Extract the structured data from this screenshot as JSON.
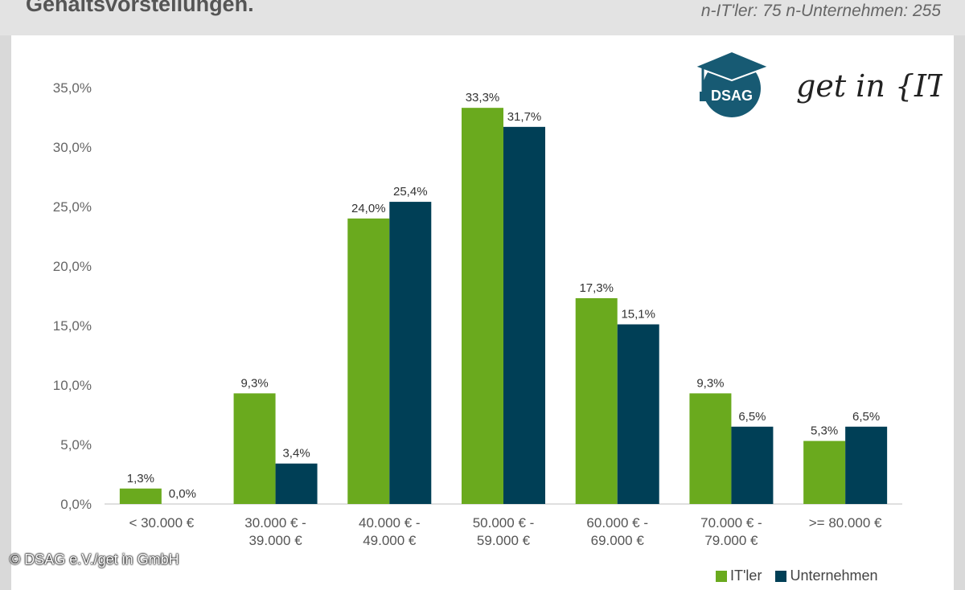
{
  "header": {
    "title": "Gehaltsvorstellungen.",
    "sample_note": "n-IT'ler: 75 n-Unternehmen: 255"
  },
  "logo": {
    "dsag_text": "DSAG",
    "getinit_text": "get in {IT}"
  },
  "copyright": "© DSAG e.V./get in GmbH",
  "colors": {
    "it_ler": "#6aaa1e",
    "unternehmen": "#003f56"
  },
  "chart_data": {
    "type": "bar",
    "categories": [
      [
        "< 30.000 €"
      ],
      [
        "30.000 € -",
        "39.000 €"
      ],
      [
        "40.000 € -",
        "49.000 €"
      ],
      [
        "50.000 € -",
        "59.000 €"
      ],
      [
        "60.000 € -",
        "69.000 €"
      ],
      [
        "70.000 € -",
        "79.000 €"
      ],
      [
        ">= 80.000 €"
      ]
    ],
    "series": [
      {
        "name": "IT'ler",
        "values": [
          1.3,
          9.3,
          24.0,
          33.3,
          17.3,
          9.3,
          5.3
        ],
        "labels": [
          "1,3%",
          "9,3%",
          "24,0%",
          "33,3%",
          "17,3%",
          "9,3%",
          "5,3%"
        ]
      },
      {
        "name": "Unternehmen",
        "values": [
          0.0,
          3.4,
          25.4,
          31.7,
          15.1,
          6.5,
          6.5
        ],
        "labels": [
          "0,0%",
          "3,4%",
          "25,4%",
          "31,7%",
          "15,1%",
          "6,5%",
          "6,5%"
        ]
      }
    ],
    "yticks": [
      "0,0%",
      "5,0%",
      "10,0%",
      "15,0%",
      "20,0%",
      "25,0%",
      "30,0%",
      "35,0%"
    ],
    "ylim": [
      0,
      35
    ],
    "legend_position": "bottom-right"
  }
}
